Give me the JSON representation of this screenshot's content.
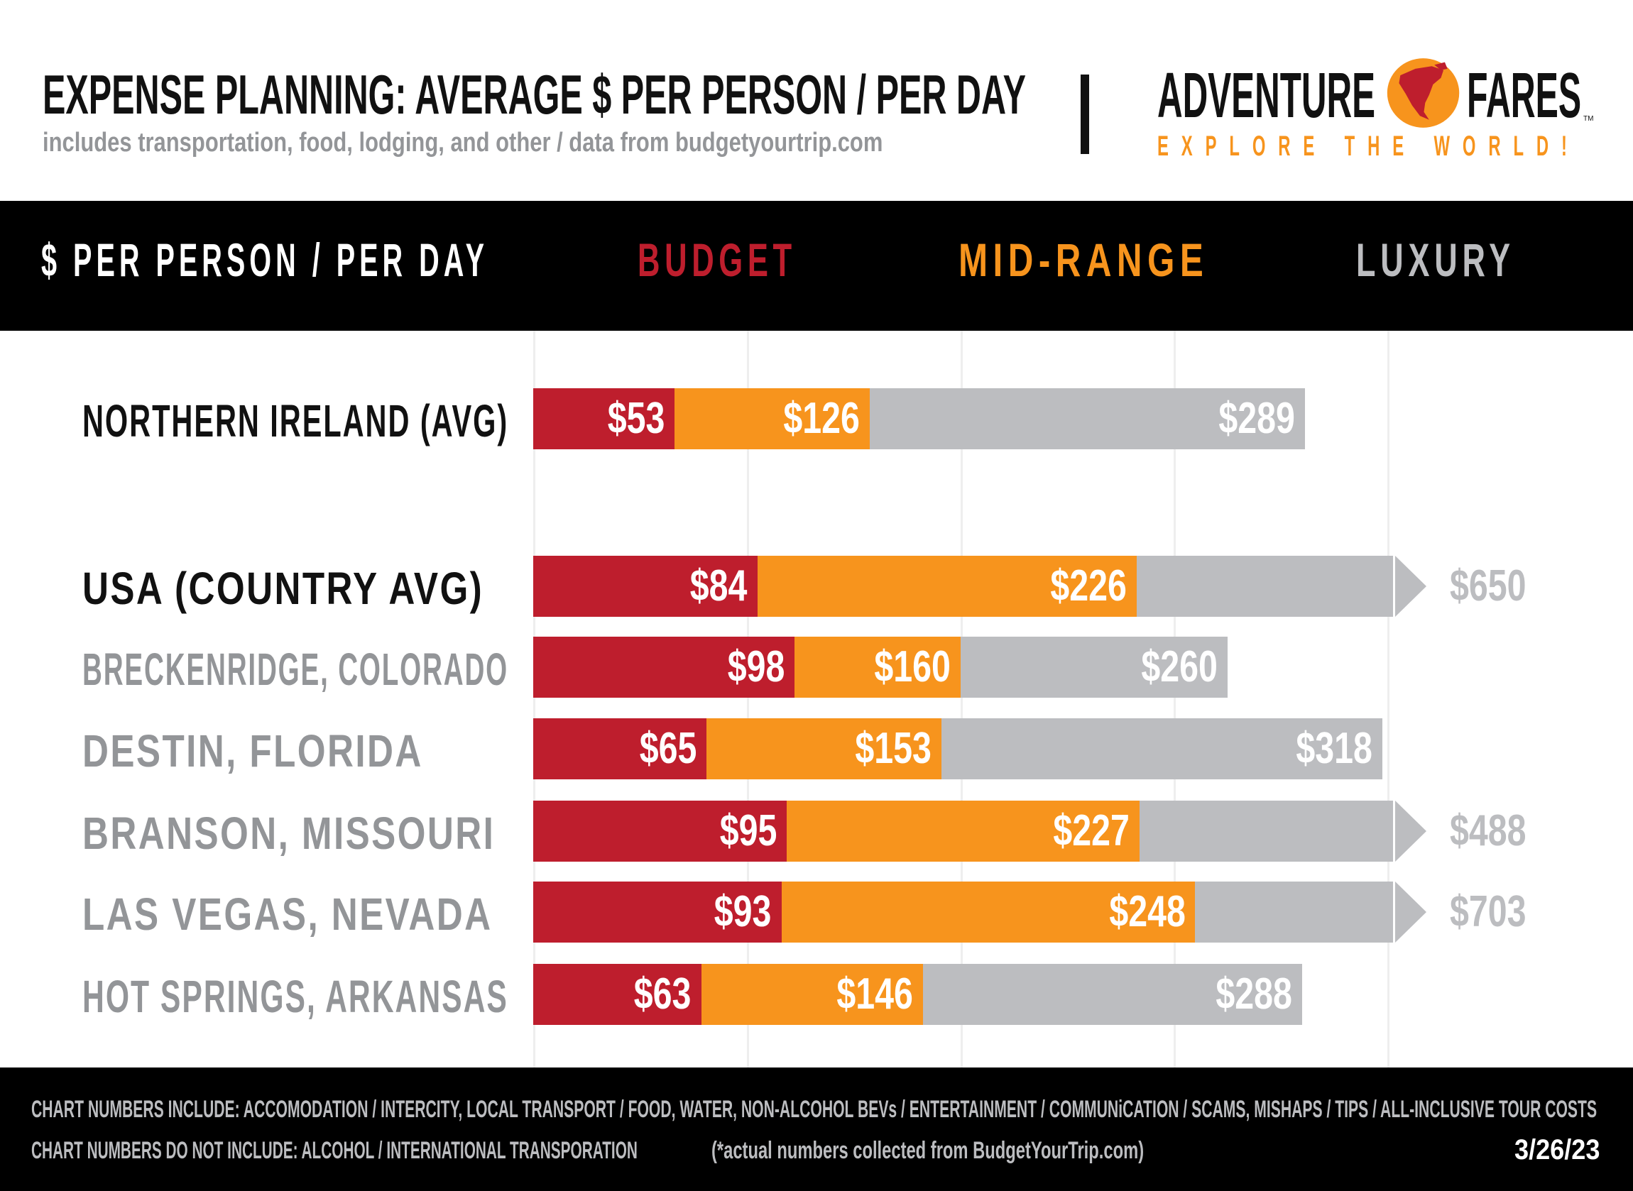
{
  "header": {
    "title": "EXPENSE PLANNING: AVERAGE $ PER PERSON / PER DAY",
    "subtitle": "includes transportation, food, lodging, and other / data from budgetyourtrip.com"
  },
  "logo": {
    "word1": "ADVENTURE",
    "word2": "FARES",
    "tm": "TM",
    "tagline": "EXPLORE THE WORLD!"
  },
  "band": {
    "heading": "$ PER PERSON / PER DAY",
    "budget": "BUDGET",
    "midrange": "MID-RANGE",
    "luxury": "LUXURY"
  },
  "colors": {
    "budget": "#BE1E2D",
    "midrange": "#F7941D",
    "luxury": "#BCBDC0",
    "label_dark": "#111111",
    "label_gray": "#939598"
  },
  "chart_data": {
    "type": "bar",
    "stacked": "overlapping cumulative tiers",
    "title": "EXPENSE PLANNING: AVERAGE $ PER PERSON / PER DAY",
    "axis_cap": 322,
    "grid_step": 80,
    "series": [
      "Budget",
      "Mid-Range",
      "Luxury"
    ],
    "rows": [
      {
        "label": "NORTHERN IRELAND (AVG)",
        "emphasis": true,
        "budget": 53,
        "midrange": 126,
        "luxury": 289,
        "labels": [
          "$53",
          "$126",
          "$289"
        ]
      },
      {
        "label": "USA (COUNTRY AVG)",
        "emphasis": true,
        "budget": 84,
        "midrange": 226,
        "luxury": 650,
        "labels": [
          "$84",
          "$226",
          "$650"
        ]
      },
      {
        "label": "BRECKENRIDGE, COLORADO",
        "emphasis": false,
        "budget": 98,
        "midrange": 160,
        "luxury": 260,
        "labels": [
          "$98",
          "$160",
          "$260"
        ]
      },
      {
        "label": "DESTIN, FLORIDA",
        "emphasis": false,
        "budget": 65,
        "midrange": 153,
        "luxury": 318,
        "labels": [
          "$65",
          "$153",
          "$318"
        ]
      },
      {
        "label": "BRANSON, MISSOURI",
        "emphasis": false,
        "budget": 95,
        "midrange": 227,
        "luxury": 488,
        "labels": [
          "$95",
          "$227",
          "$488"
        ]
      },
      {
        "label": "LAS VEGAS, NEVADA",
        "emphasis": false,
        "budget": 93,
        "midrange": 248,
        "luxury": 703,
        "labels": [
          "$93",
          "$248",
          "$703"
        ]
      },
      {
        "label": "HOT SPRINGS, ARKANSAS",
        "emphasis": false,
        "budget": 63,
        "midrange": 146,
        "luxury": 288,
        "labels": [
          "$63",
          "$146",
          "$288"
        ]
      }
    ]
  },
  "footer": {
    "includes": "CHART NUMBERS INCLUDE:  ACCOMODATION / INTERCITY, LOCAL TRANSPORT / FOOD, WATER, NON-ALCOHOL BEVs / ENTERTAINMENT / COMMUNiCATION / SCAMS, MISHAPS / TIPS / ALL-INCLUSIVE TOUR COSTS",
    "excludes": "CHART NUMBERS DO NOT INCLUDE:  ALCOHOL / INTERNATIONAL TRANSPORATION",
    "source": "(*actual numbers collected from BudgetYourTrip.com)",
    "date": "3/26/23"
  }
}
